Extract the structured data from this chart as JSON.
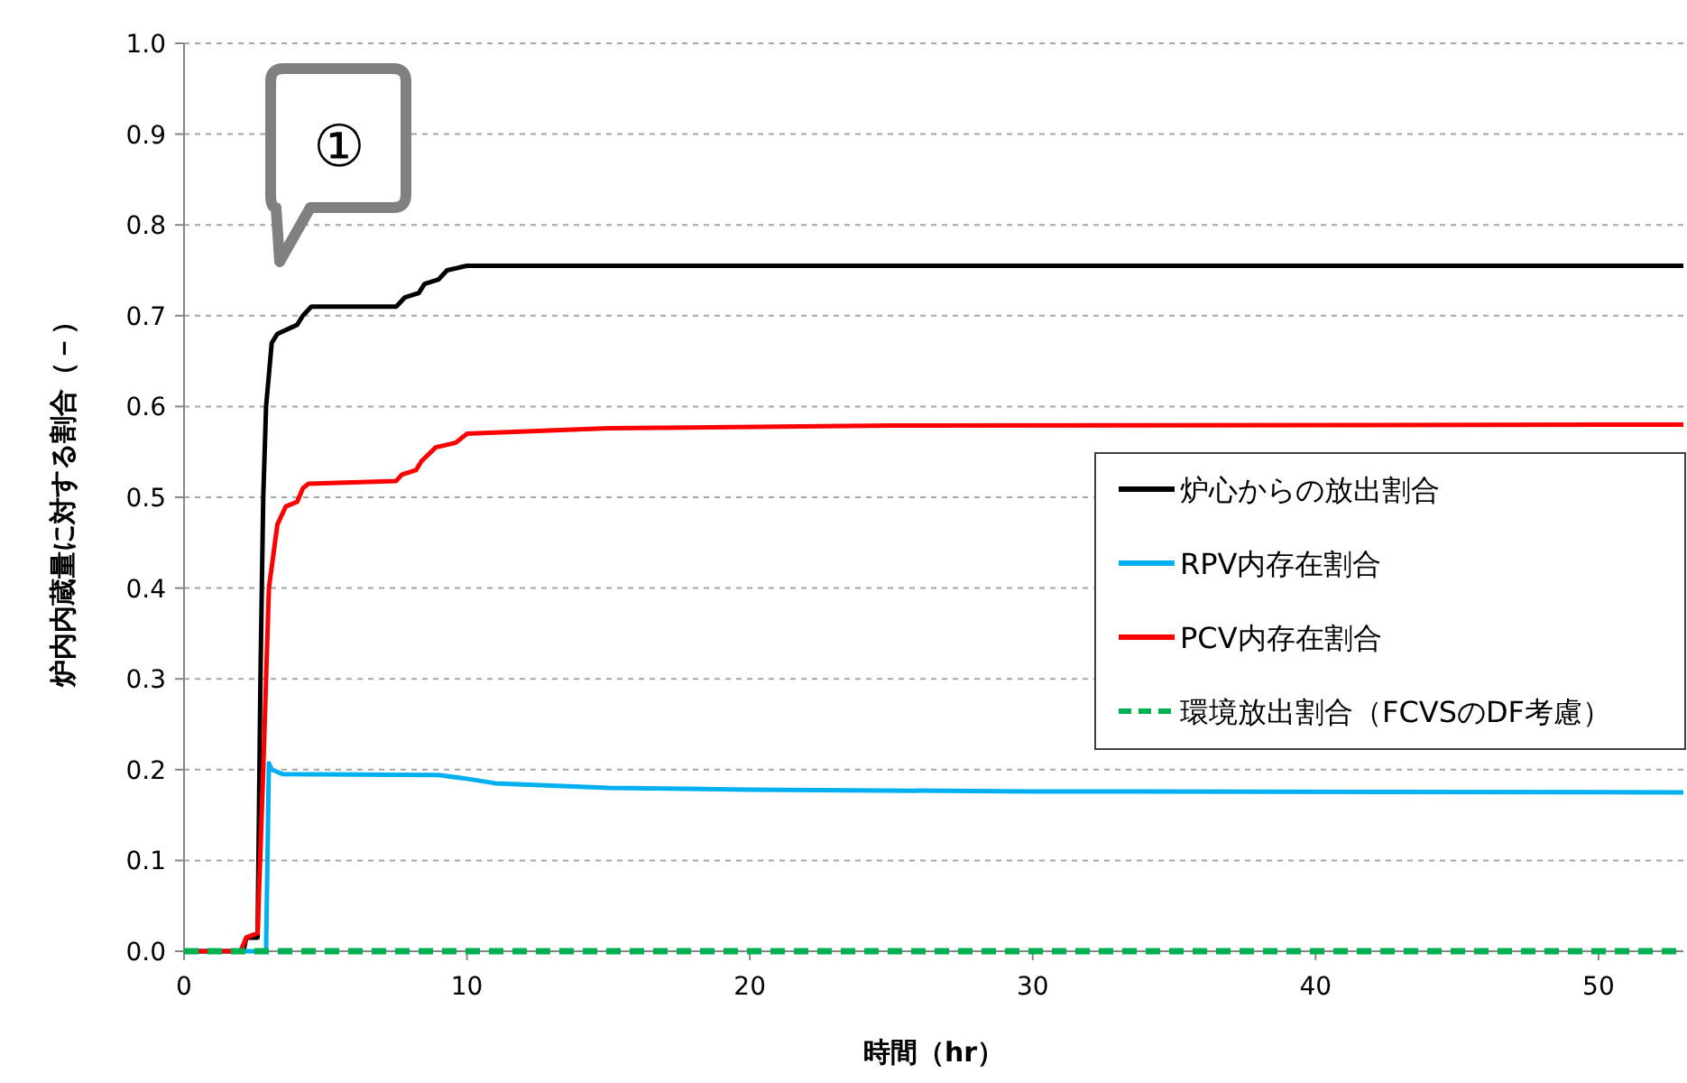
{
  "chart_data": {
    "type": "line",
    "xlabel": "時間（hr）",
    "ylabel": "炉内内蔵量に対する割合（－）",
    "annotations": [
      "①"
    ],
    "xlim": [
      0,
      53
    ],
    "ylim": [
      0,
      1
    ],
    "xticks": [
      0,
      10,
      20,
      30,
      40,
      50
    ],
    "yticks": [
      {
        "value": 0,
        "label": "0.0"
      },
      {
        "value": 0.1,
        "label": "0.1"
      },
      {
        "value": 0.2,
        "label": "0.2"
      },
      {
        "value": 0.3,
        "label": "0.3"
      },
      {
        "value": 0.4,
        "label": "0.4"
      },
      {
        "value": 0.5,
        "label": "0.5"
      },
      {
        "value": 0.6,
        "label": "0.6"
      },
      {
        "value": 0.7,
        "label": "0.7"
      },
      {
        "value": 0.8,
        "label": "0.8"
      },
      {
        "value": 0.9,
        "label": "0.9"
      },
      {
        "value": 1,
        "label": "1.0"
      }
    ],
    "grid": "y",
    "legend": "right",
    "marker": "none",
    "series": [
      {
        "name": "炉心からの放出割合",
        "color": "#000000",
        "x": [
          0,
          2.1,
          2.2,
          2.6,
          2.7,
          2.8,
          2.9,
          3.1,
          3.3,
          4.0,
          4.2,
          4.5,
          7.5,
          7.8,
          8.3,
          8.5,
          9.0,
          9.3,
          10,
          53
        ],
        "values": [
          0,
          0,
          0.015,
          0.015,
          0.3,
          0.5,
          0.6,
          0.67,
          0.68,
          0.69,
          0.7,
          0.71,
          0.71,
          0.72,
          0.725,
          0.735,
          0.74,
          0.75,
          0.755,
          0.755
        ]
      },
      {
        "name": "RPV内存在割合",
        "color": "#00b0f0",
        "x": [
          0,
          2.9,
          3.0,
          3.1,
          3.5,
          9,
          10,
          11,
          15,
          20,
          30,
          53
        ],
        "values": [
          0,
          0,
          0.207,
          0.2,
          0.195,
          0.194,
          0.19,
          0.185,
          0.18,
          0.178,
          0.176,
          0.175
        ]
      },
      {
        "name": "PCV内存在割合",
        "color": "#ff0000",
        "x": [
          0,
          2.0,
          2.2,
          2.6,
          2.8,
          3.0,
          3.3,
          3.6,
          4.0,
          4.2,
          4.4,
          7.5,
          7.7,
          8.2,
          8.4,
          8.9,
          9.6,
          10,
          15,
          25,
          53
        ],
        "values": [
          0,
          0,
          0.015,
          0.02,
          0.2,
          0.4,
          0.47,
          0.49,
          0.495,
          0.51,
          0.515,
          0.518,
          0.525,
          0.53,
          0.54,
          0.555,
          0.56,
          0.57,
          0.576,
          0.579,
          0.58
        ]
      },
      {
        "name": "環境放出割合（FCVSのDF考慮）",
        "color": "#00b050",
        "line_style": "dashed",
        "x": [
          0,
          53
        ],
        "values": [
          0,
          0
        ]
      }
    ]
  }
}
